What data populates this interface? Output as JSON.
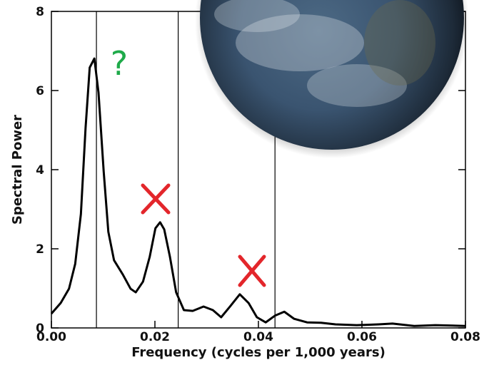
{
  "chart_data": {
    "type": "line",
    "xlabel": "Frequency (cycles per 1,000 years)",
    "ylabel": "Spectral Power",
    "annotation": "?",
    "x": [
      0,
      0.0018,
      0.0034,
      0.0046,
      0.0057,
      0.0066,
      0.0074,
      0.0083,
      0.0091,
      0.0101,
      0.011,
      0.0121,
      0.0138,
      0.0153,
      0.0163,
      0.0177,
      0.019,
      0.0201,
      0.021,
      0.0218,
      0.0229,
      0.0241,
      0.0256,
      0.0273,
      0.0294,
      0.0312,
      0.0328,
      0.0345,
      0.0364,
      0.0381,
      0.0397,
      0.0414,
      0.0432,
      0.045,
      0.0469,
      0.0494,
      0.0521,
      0.0549,
      0.059,
      0.0632,
      0.0659,
      0.0701,
      0.0742,
      0.08
    ],
    "series": [
      {
        "color": "#000000",
        "values": [
          0.36,
          0.63,
          0.99,
          1.62,
          2.88,
          5.05,
          6.58,
          6.81,
          5.95,
          3.96,
          2.43,
          1.71,
          1.35,
          0.99,
          0.9,
          1.17,
          1.8,
          2.52,
          2.67,
          2.49,
          1.8,
          0.9,
          0.45,
          0.43,
          0.54,
          0.45,
          0.27,
          0.54,
          0.85,
          0.63,
          0.27,
          0.14,
          0.31,
          0.41,
          0.23,
          0.14,
          0.13,
          0.09,
          0.07,
          0.09,
          0.11,
          0.05,
          0.07,
          0.05
        ]
      }
    ],
    "vlines": [
      0.0087,
      0.0245,
      0.0432
    ],
    "xlim": [
      0,
      0.08
    ],
    "ylim": [
      0,
      8
    ],
    "xticks": [
      {
        "value": 0,
        "label": "0.00"
      },
      {
        "value": 0.02,
        "label": "0.02"
      },
      {
        "value": 0.04,
        "label": "0.04"
      },
      {
        "value": 0.06,
        "label": "0.06"
      },
      {
        "value": 0.08,
        "label": "0.08"
      }
    ],
    "yticks": [
      0,
      2,
      4,
      6,
      8
    ]
  }
}
